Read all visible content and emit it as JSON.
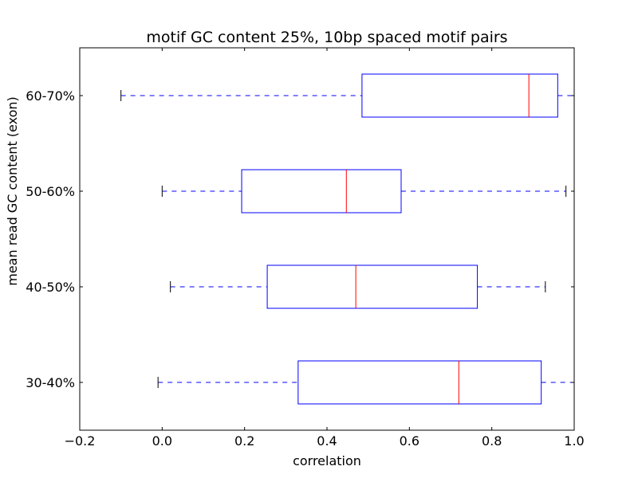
{
  "chart_data": {
    "type": "boxplot",
    "orientation": "horizontal",
    "title": "motif GC content 25%, 10bp spaced motif pairs",
    "xlabel": "correlation",
    "ylabel": "mean read GC content (exon)",
    "xlim": [
      -0.2,
      1.0
    ],
    "xticks": [
      -0.2,
      0.0,
      0.2,
      0.4,
      0.6,
      0.8,
      1.0
    ],
    "xtick_labels": [
      "−0.2",
      "0.0",
      "0.2",
      "0.4",
      "0.6",
      "0.8",
      "1.0"
    ],
    "grid": false,
    "categories": [
      "30-40%",
      "40-50%",
      "50-60%",
      "60-70%"
    ],
    "boxes": [
      {
        "category": "30-40%",
        "whisker_low": -0.01,
        "q1": 0.33,
        "median": 0.72,
        "q3": 0.92,
        "whisker_high": 1.0
      },
      {
        "category": "40-50%",
        "whisker_low": 0.02,
        "q1": 0.255,
        "median": 0.47,
        "q3": 0.765,
        "whisker_high": 0.93
      },
      {
        "category": "50-60%",
        "whisker_low": 0.0,
        "q1": 0.193,
        "median": 0.447,
        "q3": 0.58,
        "whisker_high": 0.98
      },
      {
        "category": "60-70%",
        "whisker_low": -0.1,
        "q1": 0.485,
        "median": 0.89,
        "q3": 0.96,
        "whisker_high": 1.0
      }
    ],
    "colors": {
      "box": "#0000ff",
      "median": "#ff0000",
      "whisker": "#0000ff",
      "cap": "#000000",
      "frame": "#000000"
    }
  }
}
